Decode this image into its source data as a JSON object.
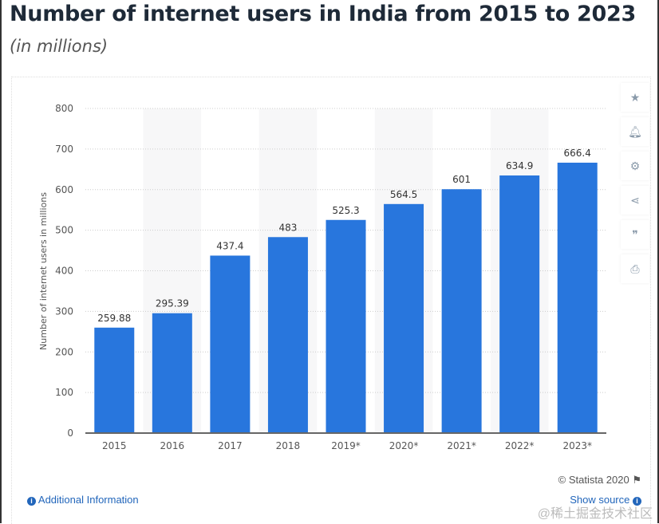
{
  "title": "Number of internet users in India from 2015 to 2023",
  "subtitle": "(in millions)",
  "chart_data": {
    "type": "bar",
    "title": "Number of internet users in India from 2015 to 2023",
    "subtitle": "(in millions)",
    "categories": [
      "2015",
      "2016",
      "2017",
      "2018",
      "2019*",
      "2020*",
      "2021*",
      "2022*",
      "2023*"
    ],
    "values": [
      259.88,
      295.39,
      437.4,
      483,
      525.3,
      564.5,
      601,
      634.9,
      666.4
    ],
    "data_labels": [
      "259.88",
      "295.39",
      "437.4",
      "483",
      "525.3",
      "564.5",
      "601",
      "634.9",
      "666.4"
    ],
    "xlabel": "",
    "ylabel": "Number of internet users in millions",
    "ylim": [
      0,
      800
    ],
    "yticks": [
      0,
      100,
      200,
      300,
      400,
      500,
      600,
      700,
      800
    ],
    "grid": true,
    "bar_color": "#2876dd"
  },
  "sidebar": {
    "icons": [
      "star-icon",
      "bell-icon",
      "gear-icon",
      "share-icon",
      "quote-icon",
      "print-icon"
    ]
  },
  "footer": {
    "copyright": "© Statista 2020",
    "additional_info": "Additional Information",
    "show_source": "Show source",
    "watermark": "@稀土掘金技术社区"
  }
}
